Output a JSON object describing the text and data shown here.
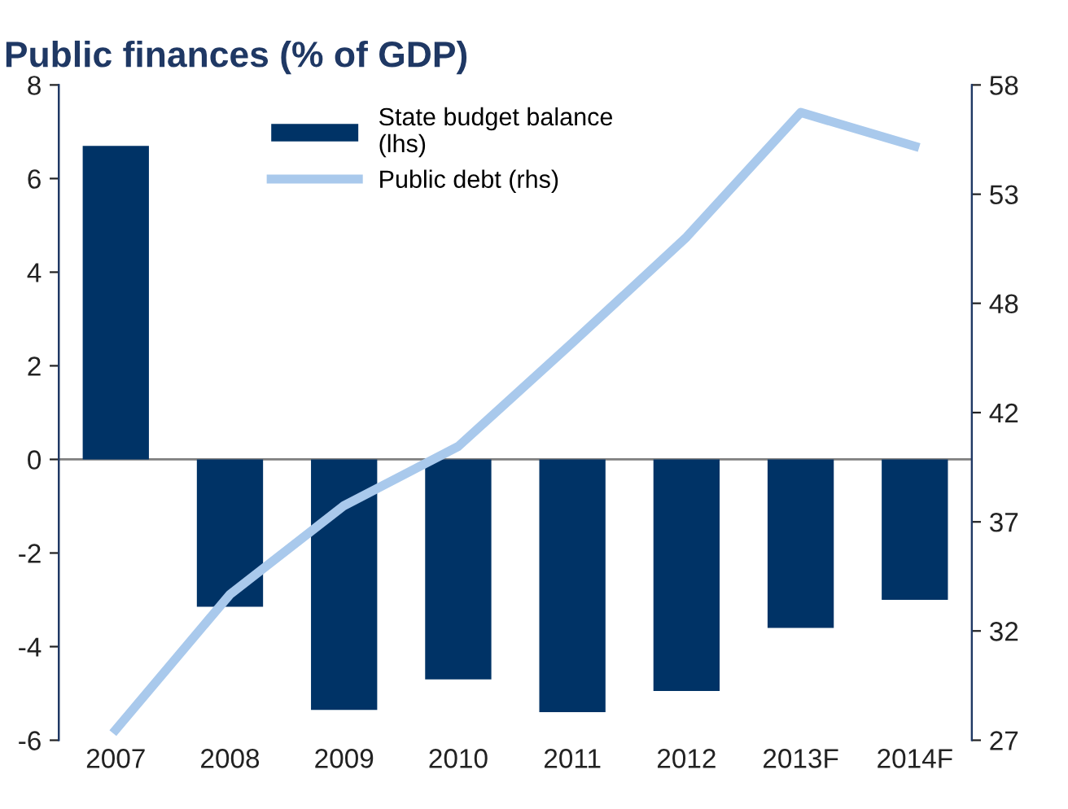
{
  "chart_data": {
    "type": "bar",
    "title": "Public finances (% of GDP)",
    "categories": [
      "2007",
      "2008",
      "2009",
      "2010",
      "2011",
      "2012",
      "2013F",
      "2014F"
    ],
    "series": [
      {
        "name": "State budget balance\n(lhs)",
        "color": "#003366",
        "values": [
          6.7,
          -3.15,
          -5.35,
          -4.7,
          -5.4,
          -4.95,
          -3.6,
          -3.0
        ]
      },
      {
        "name": "Public debt (rhs)",
        "type": "line",
        "axis": "y2",
        "color": "#a9c9ec",
        "values": [
          27.5,
          33.9,
          38.1,
          40.9,
          45.8,
          50.8,
          56.7,
          55.1
        ]
      }
    ],
    "ylim": [
      -6,
      8
    ],
    "yticks": [
      -6,
      -4,
      -2,
      0,
      2,
      4,
      6,
      8
    ],
    "y2lim": [
      27,
      58
    ],
    "y2ticks": [
      27,
      {
        "value": 32.17,
        "label": "32"
      },
      {
        "value": 37.33,
        "label": "37"
      },
      {
        "value": 42.5,
        "label": "42"
      },
      {
        "value": 47.67,
        "label": "48"
      },
      {
        "value": 52.83,
        "label": "53"
      },
      58
    ],
    "ref_lines": [
      {
        "axis": "y",
        "value": 0,
        "color": "#7f7f7f"
      }
    ],
    "legend": "top",
    "grid": false
  }
}
